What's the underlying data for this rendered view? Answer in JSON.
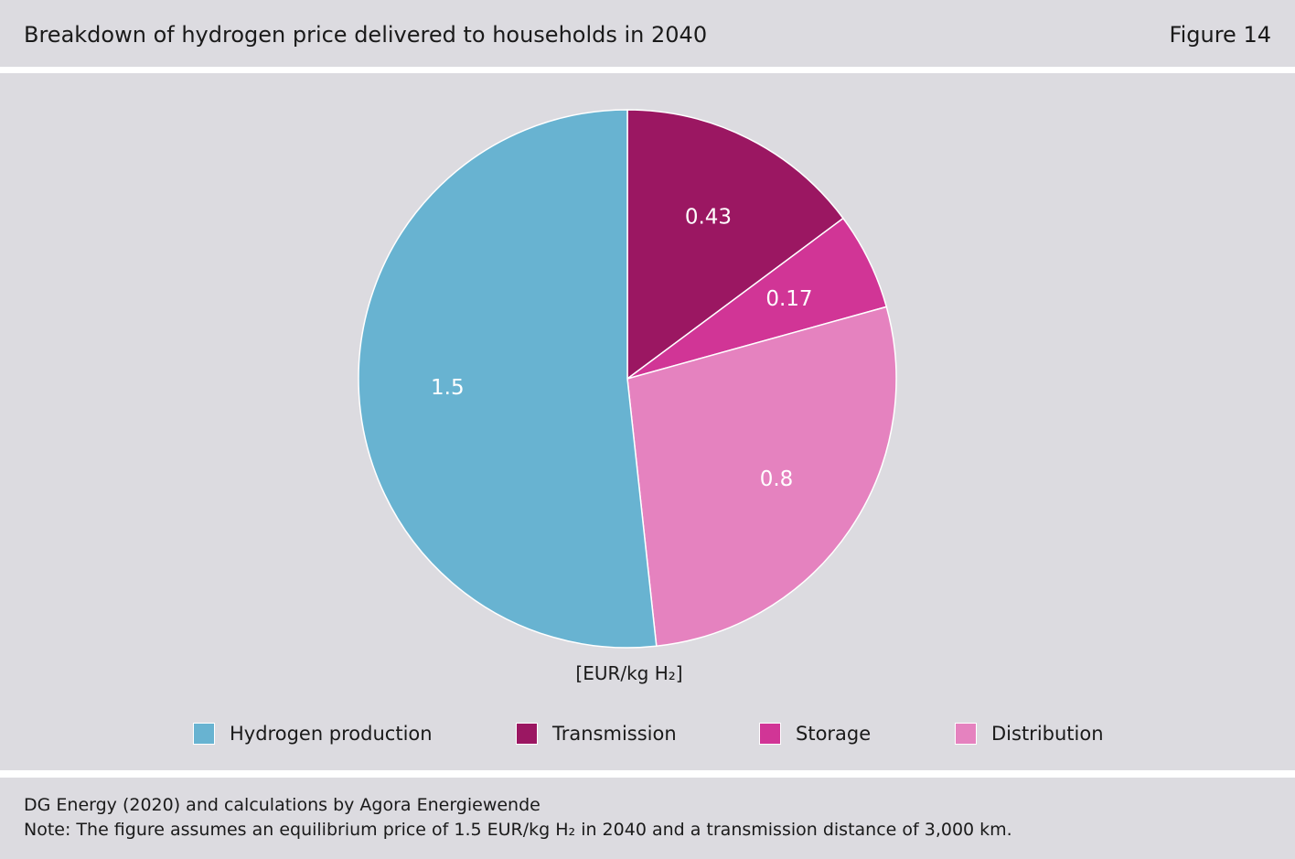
{
  "header": {
    "title": "Breakdown of hydrogen price delivered to households in 2040",
    "figure_label": "Figure 14"
  },
  "chart_data": {
    "type": "pie",
    "unit_label": "[EUR/kg H₂]",
    "start_angle": "12 o'clock",
    "direction": "clockwise",
    "slices": [
      {
        "name": "Transmission",
        "value": 0.43,
        "label": "0.43",
        "color": "#9b1762"
      },
      {
        "name": "Storage",
        "value": 0.17,
        "label": "0.17",
        "color": "#d13596"
      },
      {
        "name": "Distribution",
        "value": 0.8,
        "label": "0.8",
        "color": "#e582bf"
      },
      {
        "name": "Hydrogen production",
        "value": 1.5,
        "label": "1.5",
        "color": "#68b3d1"
      }
    ],
    "legend": [
      "Hydrogen production",
      "Transmission",
      "Storage",
      "Distribution"
    ],
    "legend_placement": "bottom"
  },
  "footer": {
    "source": "DG Energy (2020) and calculations by Agora Energiewende",
    "note": "Note: The figure assumes an equilibrium price of 1.5 EUR/kg H₂ in 2040 and a transmission distance of 3,000 km."
  }
}
